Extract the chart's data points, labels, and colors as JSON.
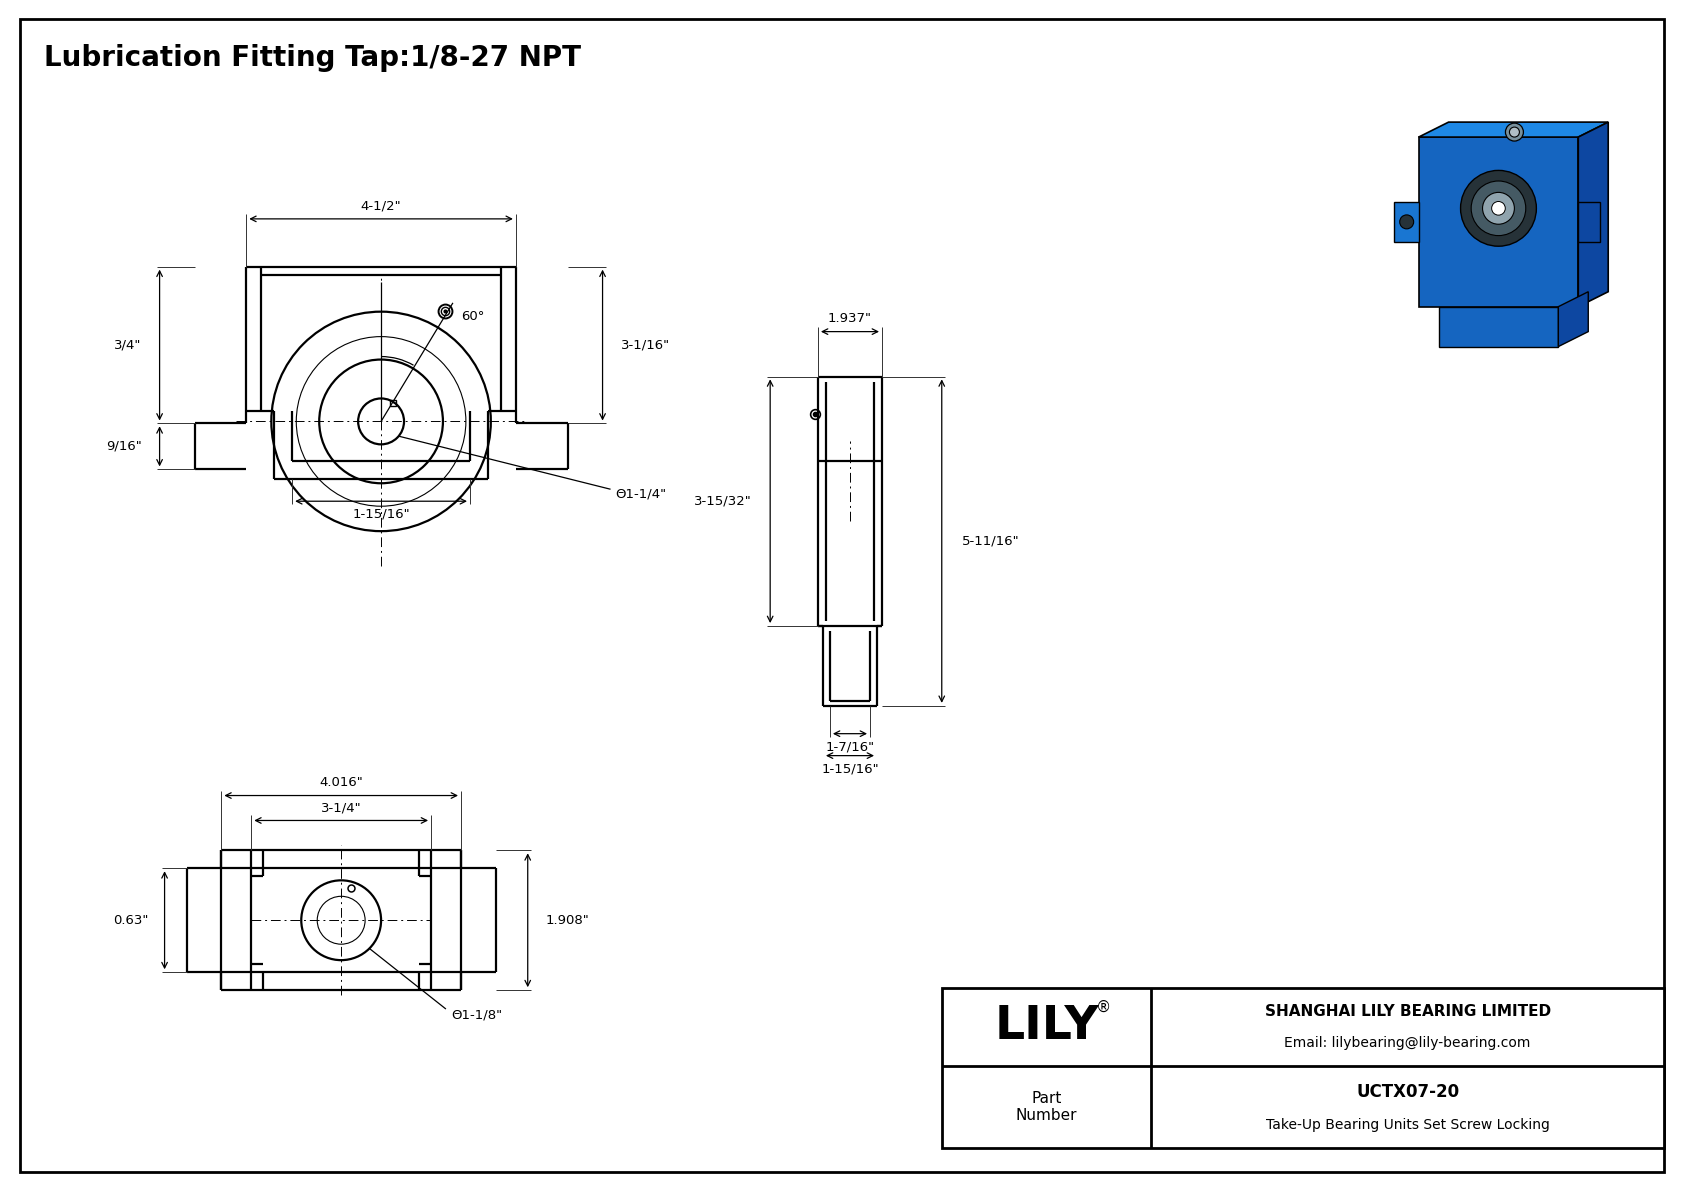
{
  "title": "Lubrication Fitting Tap:1/8-27 NPT",
  "bg_color": "#ffffff",
  "line_color": "#000000",
  "company_name": "SHANGHAI LILY BEARING LIMITED",
  "company_email": "Email: lilybearing@lily-bearing.com",
  "part_number_label": "Part\nNumber",
  "part_number": "UCTX07-20",
  "part_desc": "Take-Up Bearing Units Set Screw Locking",
  "lily_text": "LILY",
  "dim_4_1_2": "4-1/2\"",
  "dim_3_4": "3/4\"",
  "dim_9_16": "9/16\"",
  "dim_1_15_16_front": "1-15/16\"",
  "dim_3_1_16": "3-1/16\"",
  "dim_phi_1_1_4": "Θ1-1/4\"",
  "dim_60deg": "60°",
  "dim_1_937": "1.937\"",
  "dim_3_15_32": "3-15/32\"",
  "dim_5_11_16": "5-11/16\"",
  "dim_1_7_16": "1-7/16\"",
  "dim_1_15_16_side": "1-15/16\"",
  "dim_4_016": "4.016\"",
  "dim_3_1_4": "3-1/4\"",
  "dim_1_908": "1.908\"",
  "dim_0_63": "0.63\"",
  "dim_phi_1_1_8": "Θ1-1/8\"",
  "iso_blue_front": "#1565C0",
  "iso_blue_top": "#1E88E5",
  "iso_blue_right": "#0D47A1",
  "iso_blue_left": "#1976D2",
  "iso_grey_dark": "#263238",
  "iso_grey_mid": "#455A64",
  "iso_grey_light": "#CFD8DC",
  "iso_silver": "#90A4AE"
}
